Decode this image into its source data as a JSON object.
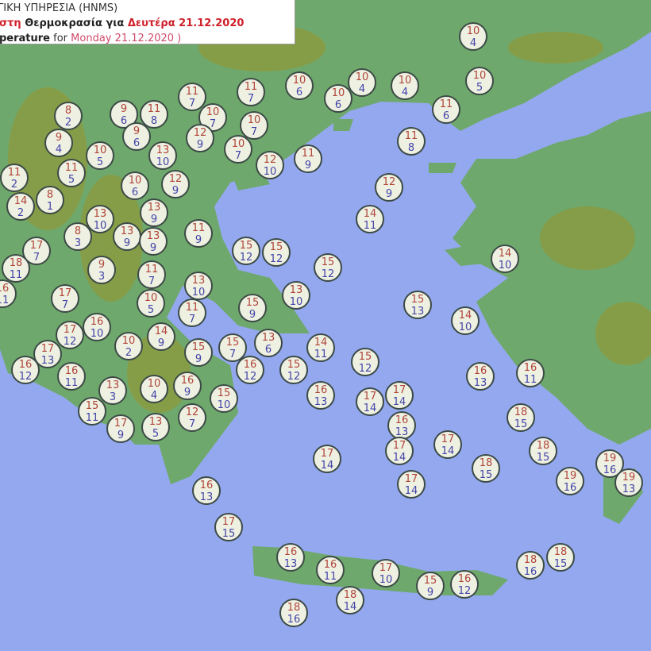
{
  "header": {
    "line1": "ΓΙΚΗ ΥΠΗΡΕΣΙΑ (HNMS)",
    "line2_a": "στη",
    "line2_b": " Θερμοκρασία για ",
    "line2_c": "Δευτέρα 21.12.2020",
    "line3_a": "perature",
    "line3_b": " for ",
    "line3_c": "Monday 21.12.2020 )",
    "line3_d": ""
  },
  "colors": {
    "sea": "#93a8ee",
    "land": "#6fa86c",
    "mountain": "#8a9a3a",
    "max_temp": "#b0453a",
    "min_temp": "#4444a8"
  },
  "stations": [
    [
      10,
      4
    ],
    [
      10,
      5
    ],
    [
      10,
      6
    ],
    [
      10,
      4
    ],
    [
      10,
      4
    ],
    [
      10,
      6
    ],
    [
      11,
      6
    ],
    [
      11,
      7
    ],
    [
      11,
      7
    ],
    [
      10,
      7
    ],
    [
      10,
      7
    ],
    [
      12,
      9
    ],
    [
      10,
      7
    ],
    [
      12,
      10
    ],
    [
      11,
      9
    ],
    [
      11,
      8
    ],
    [
      8,
      2
    ],
    [
      9,
      6
    ],
    [
      11,
      8
    ],
    [
      9,
      6
    ],
    [
      9,
      4
    ],
    [
      10,
      5
    ],
    [
      13,
      10
    ],
    [
      11,
      2
    ],
    [
      11,
      5
    ],
    [
      10,
      6
    ],
    [
      12,
      9
    ],
    [
      14,
      2
    ],
    [
      8,
      1
    ],
    [
      13,
      10
    ],
    [
      13,
      9
    ],
    [
      8,
      3
    ],
    [
      13,
      9
    ],
    [
      13,
      9
    ],
    [
      11,
      9
    ],
    [
      12,
      9
    ],
    [
      14,
      11
    ],
    [
      15,
      12
    ],
    [
      15,
      12
    ],
    [
      15,
      12
    ],
    [
      17,
      7
    ],
    [
      18,
      11
    ],
    [
      9,
      3
    ],
    [
      11,
      7
    ],
    [
      13,
      10
    ],
    [
      16,
      11
    ],
    [
      17,
      7
    ],
    [
      10,
      5
    ],
    [
      11,
      7
    ],
    [
      15,
      9
    ],
    [
      13,
      10
    ],
    [
      15,
      13
    ],
    [
      14,
      10
    ],
    [
      14,
      10
    ],
    [
      16,
      10
    ],
    [
      17,
      12
    ],
    [
      10,
      2
    ],
    [
      14,
      9
    ],
    [
      17,
      13
    ],
    [
      15,
      9
    ],
    [
      15,
      7
    ],
    [
      13,
      6
    ],
    [
      14,
      11
    ],
    [
      16,
      12
    ],
    [
      16,
      11
    ],
    [
      16,
      12
    ],
    [
      15,
      12
    ],
    [
      15,
      12
    ],
    [
      13,
      3
    ],
    [
      10,
      4
    ],
    [
      16,
      9
    ],
    [
      16,
      13
    ],
    [
      16,
      11
    ],
    [
      16,
      13
    ],
    [
      15,
      10
    ],
    [
      17,
      14
    ],
    [
      17,
      14
    ],
    [
      15,
      11
    ],
    [
      17,
      9
    ],
    [
      13,
      5
    ],
    [
      12,
      7
    ],
    [
      16,
      13
    ],
    [
      18,
      15
    ],
    [
      17,
      14
    ],
    [
      17,
      14
    ],
    [
      17,
      14
    ],
    [
      18,
      15
    ],
    [
      18,
      15
    ],
    [
      17,
      14
    ],
    [
      19,
      16
    ],
    [
      19,
      16
    ],
    [
      19,
      13
    ],
    [
      16,
      13
    ],
    [
      17,
      15
    ],
    [
      16,
      13
    ],
    [
      16,
      11
    ],
    [
      17,
      10
    ],
    [
      18,
      14
    ],
    [
      15,
      9
    ],
    [
      16,
      12
    ],
    [
      18,
      16
    ],
    [
      18,
      15
    ],
    [
      18,
      16
    ]
  ]
}
